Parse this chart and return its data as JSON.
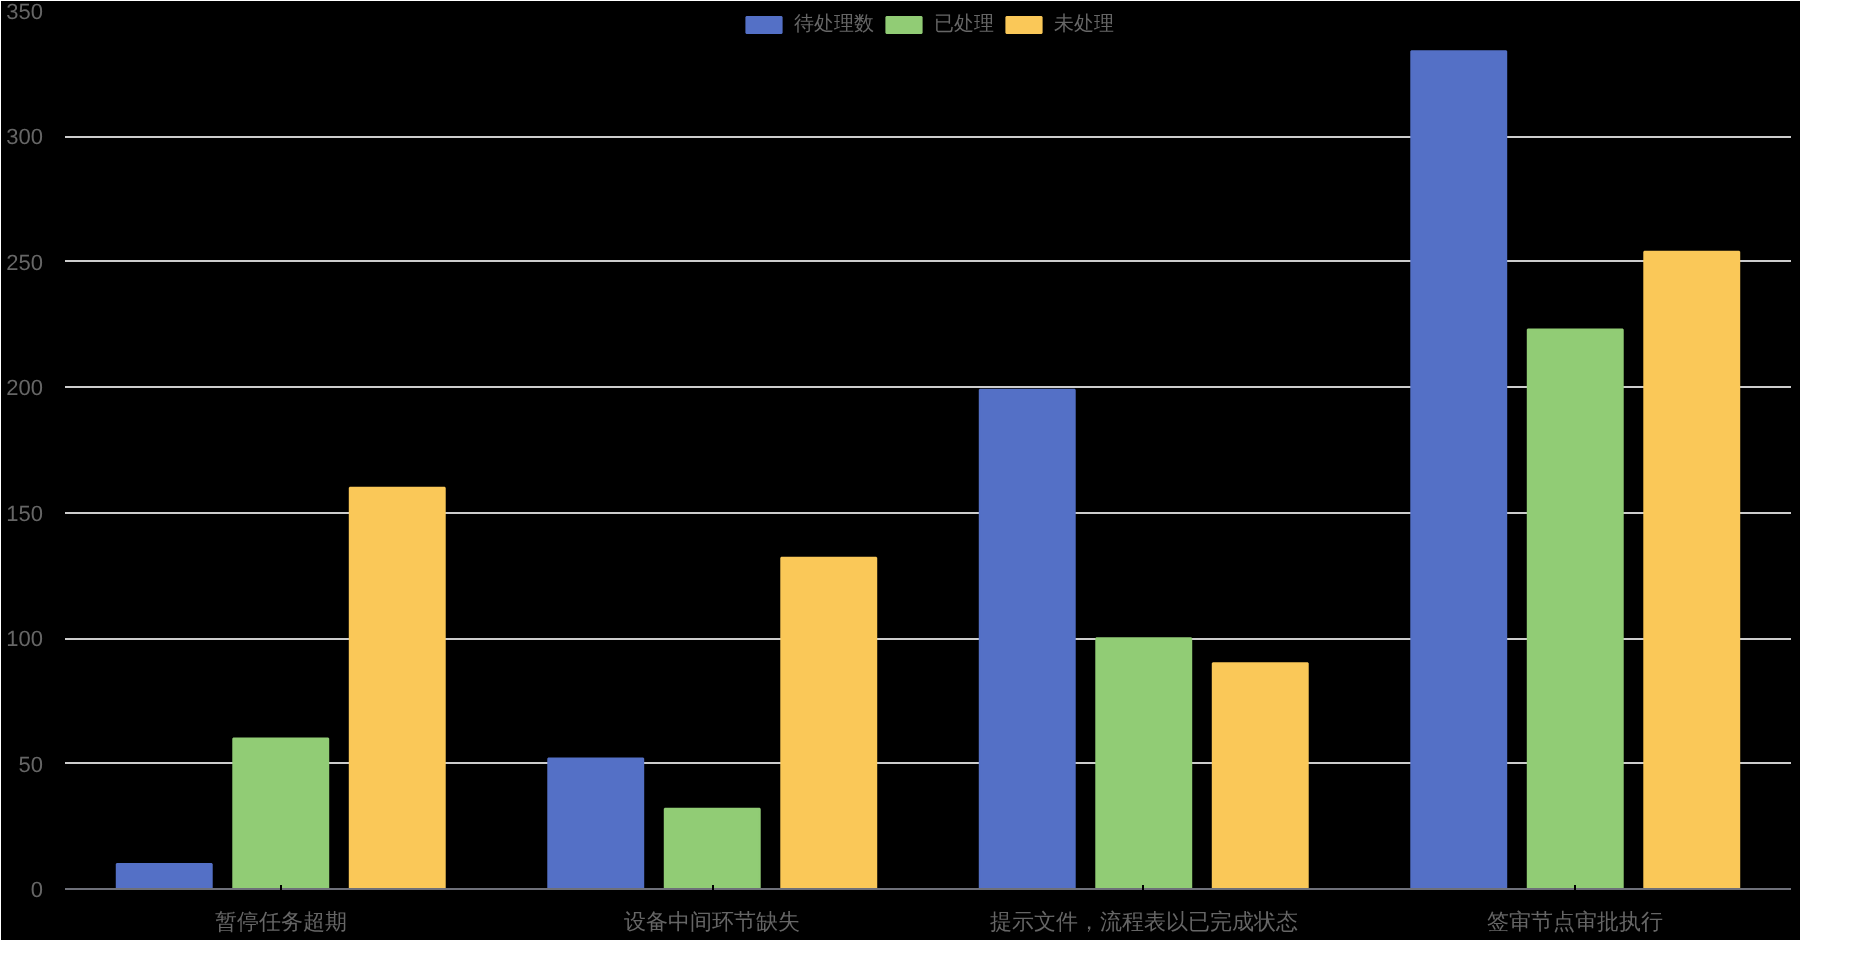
{
  "chart_data": {
    "type": "bar",
    "categories": [
      "暂停任务超期",
      "设备中间环节缺失",
      "提示文件，流程表以已完成状态",
      "签审节点审批执行"
    ],
    "series": [
      {
        "name": "待处理数",
        "color": "#5470c6",
        "values": [
          10,
          52,
          199,
          334
        ]
      },
      {
        "name": "已处理",
        "color": "#91cc75",
        "values": [
          60,
          32,
          100,
          223
        ]
      },
      {
        "name": "未处理",
        "color": "#fac858",
        "values": [
          160,
          132,
          90,
          254
        ]
      }
    ],
    "ylim": [
      0,
      350
    ],
    "yticks": [
      0,
      50,
      100,
      150,
      200,
      250,
      300,
      350
    ],
    "grid": "y",
    "legend": "top"
  }
}
